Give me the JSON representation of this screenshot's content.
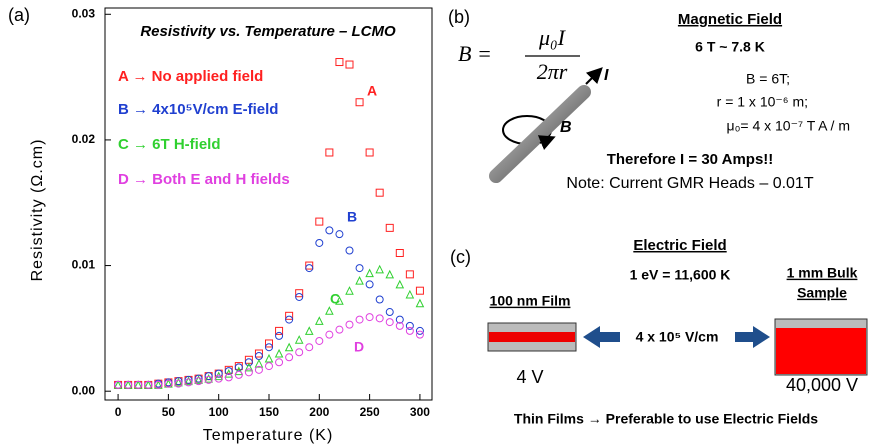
{
  "chart_data": {
    "type": "scatter",
    "panel_label": "(a)",
    "title": "Resistivity vs. Temperature – LCMO",
    "x_label": "Temperature (K)",
    "y_label": "Resistivity (Ω.cm)",
    "xlim": [
      -13,
      312
    ],
    "ylim": [
      -0.0007,
      0.0305
    ],
    "xticks": [
      0,
      50,
      100,
      150,
      200,
      250,
      300
    ],
    "yticks": [
      {
        "value": 0,
        "label": "0.00"
      },
      0.01,
      0.02,
      0.03
    ],
    "x": [
      0,
      10,
      20,
      30,
      40,
      50,
      60,
      70,
      80,
      90,
      100,
      110,
      120,
      130,
      140,
      150,
      160,
      170,
      180,
      190,
      200,
      210,
      220,
      230,
      240,
      250,
      260,
      270,
      280,
      290,
      300
    ],
    "series": [
      {
        "name": "A → No applied field",
        "label": "A",
        "color": "#ff2020",
        "marker": "square",
        "values": [
          0.0005,
          0.0005,
          0.0005,
          0.0005,
          0.0006,
          0.0007,
          0.0008,
          0.0009,
          0.001,
          0.0012,
          0.0014,
          0.0017,
          0.002,
          0.0025,
          0.003,
          0.0038,
          0.0048,
          0.006,
          0.0078,
          0.01,
          0.0135,
          0.019,
          0.0262,
          0.026,
          0.023,
          0.019,
          0.0158,
          0.013,
          0.011,
          0.0093,
          0.008
        ]
      },
      {
        "name": "B → 4x10⁵V/cm E-field",
        "label": "B",
        "color": "#2040d0",
        "marker": "circle",
        "values": [
          0.0005,
          0.0005,
          0.0005,
          0.0005,
          0.0006,
          0.0007,
          0.0008,
          0.0009,
          0.001,
          0.0012,
          0.0014,
          0.0016,
          0.0019,
          0.0023,
          0.0028,
          0.0035,
          0.0044,
          0.0057,
          0.0075,
          0.0098,
          0.0118,
          0.0128,
          0.0125,
          0.0112,
          0.0098,
          0.0085,
          0.0073,
          0.0063,
          0.0057,
          0.0052,
          0.0048
        ]
      },
      {
        "name": "C → 6T H-field",
        "label": "C",
        "color": "#30d030",
        "marker": "triangle",
        "values": [
          0.0005,
          0.0005,
          0.0005,
          0.0005,
          0.0005,
          0.0006,
          0.0007,
          0.0008,
          0.0009,
          0.001,
          0.0012,
          0.0014,
          0.0016,
          0.0019,
          0.0022,
          0.0026,
          0.003,
          0.0035,
          0.0041,
          0.0048,
          0.0056,
          0.0064,
          0.0072,
          0.008,
          0.0088,
          0.0094,
          0.0097,
          0.0093,
          0.0085,
          0.0077,
          0.007
        ]
      },
      {
        "name": "D → Both E and H fields",
        "label": "D",
        "color": "#e040e0",
        "marker": "circle",
        "values": [
          0.0005,
          0.0005,
          0.0005,
          0.0005,
          0.0005,
          0.0006,
          0.0006,
          0.0007,
          0.0008,
          0.0009,
          0.001,
          0.0011,
          0.0013,
          0.0015,
          0.0017,
          0.002,
          0.0023,
          0.0027,
          0.0031,
          0.0035,
          0.004,
          0.0045,
          0.0049,
          0.0053,
          0.0057,
          0.0059,
          0.0058,
          0.0055,
          0.0052,
          0.0048,
          0.0045
        ]
      }
    ]
  },
  "panel_b": {
    "label": "(b)",
    "formula": {
      "lhs": "B =",
      "numerator": "μ₀I",
      "denominator": "2πr"
    },
    "current_label": "I",
    "field_label": "B",
    "heading": "Magnetic Field",
    "equivalence": "6 T ~ 7.8 K",
    "lines": [
      "B = 6T;",
      "r = 1 x 10⁻⁶ m;",
      "μ₀= 4 x 10⁻⁷ T A / m"
    ],
    "result": "Therefore I = 30 Amps!!",
    "note": "Note: Current GMR Heads – 0.01T"
  },
  "panel_c": {
    "label": "(c)",
    "heading": "Electric Field",
    "equivalence": "1 eV = 11,600 K",
    "film_label": "100 nm Film",
    "bulk_label": [
      "1 mm Bulk",
      "Sample"
    ],
    "field": "4 x 10⁵ V/cm",
    "film_voltage": "4 V",
    "bulk_voltage": "40,000 V",
    "conclusion": "Thin Films → Preferable to use Electric Fields"
  }
}
